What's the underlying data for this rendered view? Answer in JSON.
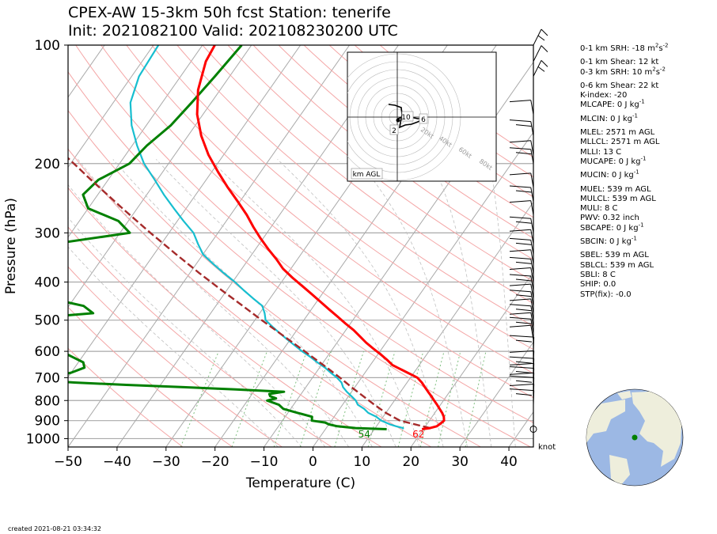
{
  "title": {
    "line1": "CPEX-AW 15-3km  50h fcst  Station: tenerife",
    "line2": "Init: 2021082100  Valid: 202108230200 UTC"
  },
  "footer": {
    "created": "created 2021-08-21 03:34:32"
  },
  "barb_units": "knot",
  "hodograph": {
    "label": "km AGL",
    "height_labels": [
      "2",
      "6",
      "10"
    ],
    "ring_labels": [
      "20kt",
      "40kt",
      "60kt",
      "80kt"
    ]
  },
  "stats": [
    {
      "label": "0-1 km SRH",
      "value": "-18 m",
      "unit_sup": "2",
      "unit_mid": "s",
      "unit_sup2": "-2"
    },
    {
      "label": "0-1 km Shear",
      "value": "12 kt"
    },
    {
      "label": "0-3 km SRH",
      "value": "10 m",
      "unit_sup": "2",
      "unit_mid": "s",
      "unit_sup2": "-2"
    },
    {
      "label": "0-6 km Shear",
      "value": "22 kt"
    },
    {
      "label": "K-index",
      "value": "-20"
    },
    {
      "label": "MLCAPE",
      "value": "0 J kg",
      "unit_sup2": "-1"
    },
    {
      "label": "MLCIN",
      "value": "0 J kg",
      "unit_sup2": "-1"
    },
    {
      "label": "MLEL",
      "value": "2571 m AGL"
    },
    {
      "label": "MLLCL",
      "value": "2571 m AGL"
    },
    {
      "label": "MLLI",
      "value": "13 C"
    },
    {
      "label": "MUCAPE",
      "value": "0 J kg",
      "unit_sup2": "-1"
    },
    {
      "label": "MUCIN",
      "value": "0 J kg",
      "unit_sup2": "-1"
    },
    {
      "label": "MUEL",
      "value": "539 m AGL"
    },
    {
      "label": "MULCL",
      "value": "539 m AGL"
    },
    {
      "label": "MULI",
      "value": "8 C"
    },
    {
      "label": "PWV",
      "value": "0.32 inch"
    },
    {
      "label": "SBCAPE",
      "value": "0 J kg",
      "unit_sup2": "-1"
    },
    {
      "label": "SBCIN",
      "value": "0 J kg",
      "unit_sup2": "-1"
    },
    {
      "label": "SBEL",
      "value": "539 m AGL"
    },
    {
      "label": "SBLCL",
      "value": "539 m AGL"
    },
    {
      "label": "SBLI",
      "value": "8 C"
    },
    {
      "label": "SHIP",
      "value": "0.0"
    },
    {
      "label": "STP(fix)",
      "value": "-0.0"
    }
  ],
  "colors": {
    "temperature": "#ff0000",
    "dewpoint": "#008000",
    "wetbulb": "#17becf",
    "parcel": "#a52a2a",
    "isobar": "#a9a9a9",
    "isotherm": "#a9a9a9",
    "dry_adiabat": "#f4a6a6",
    "moist_adiabat": "#c0c0c0",
    "mixing_ratio": "#7fbf7f",
    "globe_land": "#eeeedc",
    "globe_ocean": "#9cb8e4",
    "station_marker": "#008000"
  },
  "chart_data": {
    "type": "line",
    "subtype": "skew-T log-p",
    "xlabel": "Temperature (C)",
    "ylabel": "Pressure (hPa)",
    "xlim": [
      -50,
      45
    ],
    "ylim": [
      1050,
      100
    ],
    "y_scale": "log",
    "x_ticks": [
      "−50",
      "−40",
      "−30",
      "−20",
      "−10",
      "0",
      "10",
      "20",
      "30",
      "40"
    ],
    "y_ticks": [
      "100",
      "200",
      "300",
      "400",
      "500",
      "600",
      "700",
      "800",
      "900",
      "1000"
    ],
    "surface_labels": {
      "dewpoint": "54",
      "temperature": "62"
    },
    "series": [
      {
        "key": "temperature",
        "pressure": [
          946,
          940,
          930,
          920,
          910,
          900,
          880,
          860,
          840,
          820,
          800,
          780,
          760,
          740,
          720,
          700,
          690,
          680,
          670,
          660,
          650,
          630,
          610,
          590,
          570,
          550,
          530,
          510,
          490,
          470,
          450,
          430,
          410,
          390,
          370,
          350,
          330,
          310,
          290,
          270,
          250,
          230,
          210,
          190,
          170,
          150,
          130,
          110,
          100
        ],
        "values": [
          19.7,
          21.2,
          22.3,
          22.6,
          22.8,
          23.0,
          22.4,
          21.5,
          20.4,
          19.3,
          18.1,
          16.9,
          15.6,
          14.3,
          13.0,
          11.4,
          10.1,
          8.7,
          7.3,
          5.9,
          4.5,
          2.6,
          0.5,
          -1.8,
          -4.1,
          -6.2,
          -8.4,
          -11.0,
          -13.6,
          -16.3,
          -19.1,
          -22.0,
          -25.1,
          -28.4,
          -31.6,
          -34.3,
          -37.4,
          -40.5,
          -43.6,
          -46.7,
          -50.4,
          -54.5,
          -58.7,
          -63.1,
          -67.3,
          -71.2,
          -74.5,
          -77.0,
          -77.5
        ]
      },
      {
        "key": "wetbulb",
        "pressure": [
          946,
          940,
          930,
          920,
          900,
          880,
          860,
          840,
          820,
          800,
          780,
          760,
          740,
          720,
          700,
          680,
          660,
          640,
          620,
          600,
          580,
          560,
          540,
          520,
          500,
          480,
          460,
          440,
          420,
          400,
          380,
          360,
          340,
          320,
          300,
          280,
          260,
          240,
          220,
          200,
          180,
          160,
          140,
          120,
          100
        ],
        "values": [
          15.8,
          15.7,
          14.0,
          12.5,
          10.2,
          8.6,
          6.4,
          5.0,
          3.1,
          2.1,
          0.6,
          -1.0,
          -2.4,
          -3.4,
          -5.0,
          -7.0,
          -8.9,
          -11.2,
          -13.4,
          -15.9,
          -18.2,
          -20.6,
          -23.0,
          -25.4,
          -27.8,
          -29.0,
          -30.5,
          -33.5,
          -36.5,
          -39.5,
          -43.0,
          -46.5,
          -50.0,
          -52.5,
          -55.0,
          -58.7,
          -62.5,
          -66.5,
          -70.5,
          -75.0,
          -79.0,
          -83.0,
          -86.5,
          -88.5,
          -89.0
        ]
      },
      {
        "key": "dewpoint",
        "pressure": [
          946,
          940,
          930,
          920,
          910,
          900,
          880,
          860,
          840,
          820,
          800,
          790,
          780,
          770,
          760,
          750,
          740,
          730,
          720,
          710,
          700,
          680,
          660,
          640,
          620,
          600,
          580,
          560,
          540,
          520,
          500,
          480,
          460,
          440,
          420,
          400,
          380,
          360,
          340,
          320,
          300,
          280,
          260,
          240,
          220,
          200,
          180,
          160,
          140,
          120,
          100
        ],
        "values": [
          12.5,
          6.0,
          2.0,
          0.0,
          -1.0,
          -4.0,
          -4.5,
          -8.0,
          -11.5,
          -13.0,
          -16.0,
          -14.5,
          -16.0,
          -16.5,
          -13.8,
          -24.0,
          -35.0,
          -47.0,
          -58.0,
          -66.0,
          -64.0,
          -60.0,
          -58.0,
          -59.0,
          -62.0,
          -65.0,
          -72.0,
          -80.0,
          -87.0,
          -90.0,
          -80.0,
          -64.0,
          -67.0,
          -75.0,
          -90.0,
          -105.0,
          -103.0,
          -98.0,
          -90.0,
          -82.0,
          -68.0,
          -72.0,
          -80.0,
          -83.0,
          -82.0,
          -78.0,
          -77.0,
          -75.0,
          -74.0,
          -73.0,
          -72.0
        ]
      },
      {
        "key": "parcel",
        "pressure": [
          940,
          900,
          860,
          820,
          780,
          740,
          700,
          660,
          620,
          580,
          540,
          500,
          460,
          420,
          380,
          340,
          300,
          260,
          220,
          180,
          150,
          120,
          100
        ],
        "values": [
          21.2,
          14.0,
          10.0,
          6.5,
          3.0,
          -0.7,
          -4.4,
          -8.5,
          -13.0,
          -17.8,
          -23.0,
          -28.6,
          -34.5,
          -41.0,
          -48.0,
          -55.5,
          -63.8,
          -73.0,
          -83.5,
          -95.8,
          -106.5,
          -119.5,
          -130.0
        ]
      }
    ]
  }
}
